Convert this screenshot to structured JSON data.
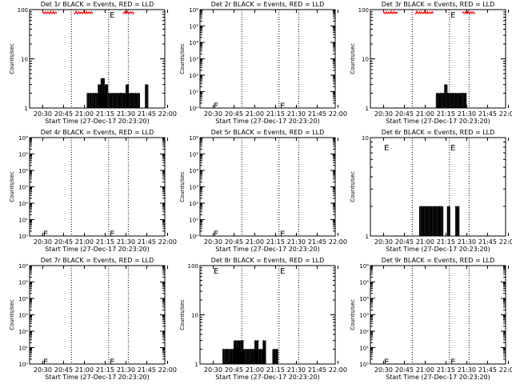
{
  "chart_data": [
    {
      "type": "line",
      "title": "Det 1r BLACK = Events, RED = LLD",
      "xlabel": "Start Time (27-Dec-17 20:23:20)",
      "ylabel": "Counts/sec",
      "xticks": [
        "20:30",
        "20:45",
        "21:00",
        "21:15",
        "21:30",
        "21:45",
        "22:00"
      ],
      "yscale": "log",
      "ylim": [
        1,
        100
      ],
      "yticks": [
        {
          "v": 1,
          "t": "1"
        },
        {
          "v": 10,
          "t": "10"
        },
        {
          "v": 100,
          "t": "100"
        }
      ],
      "dotted_lines_min": [
        20.67,
        47.5,
        61.67
      ],
      "markers": [
        {
          "x": 48.3,
          "y": 80,
          "t": "E"
        }
      ],
      "series": [
        {
          "color": "#000000",
          "bursts": [
            [
              32,
              46,
              1,
              2
            ],
            [
              40,
              42,
              1,
              3
            ],
            [
              42,
              45,
              1,
              4
            ],
            [
              45,
              47,
              1,
              3
            ],
            [
              47,
              70,
              1,
              2
            ],
            [
              60,
              62,
              1,
              3
            ],
            [
              74,
              76,
              1,
              3
            ]
          ]
        },
        {
          "color": "#ff0000",
          "lld": "top",
          "segments": [
            [
              0,
              10
            ],
            [
              23,
              36
            ],
            [
              58,
              66
            ]
          ]
        }
      ]
    },
    {
      "type": "line",
      "title": "Det 2r BLACK = Events, RED = LLD",
      "xlabel": "Start Time (27-Dec-17 20:23:20)",
      "ylabel": "Counts/sec",
      "xticks": [
        "20:30",
        "20:45",
        "21:00",
        "21:15",
        "21:30",
        "21:45",
        "22:00"
      ],
      "yscale": "log",
      "ylim": [
        1,
        1000000
      ],
      "yticks": [
        {
          "v": 1,
          "t": "10⁰"
        },
        {
          "v": 10,
          "t": "10¹"
        },
        {
          "v": 100,
          "t": "10²"
        },
        {
          "v": 1000,
          "t": "10³"
        },
        {
          "v": 10000,
          "t": "10⁴"
        },
        {
          "v": 100000,
          "t": "10⁵"
        },
        {
          "v": 1000000,
          "t": "10⁶"
        }
      ],
      "dotted_lines_min": [
        20.67,
        47.5,
        61.67
      ],
      "markers": [
        {
          "x": 0.3,
          "y": 1.5,
          "t": "E"
        },
        {
          "x": 48.3,
          "y": 1.5,
          "t": "E"
        }
      ],
      "series": []
    },
    {
      "type": "line",
      "title": "Det 3r BLACK = Events, RED = LLD",
      "xlabel": "Start Time (27-Dec-17 20:23:20)",
      "ylabel": "Counts/sec",
      "xticks": [
        "20:30",
        "20:45",
        "21:00",
        "21:15",
        "21:30",
        "21:45",
        "22:00"
      ],
      "yscale": "log",
      "ylim": [
        1,
        100
      ],
      "yticks": [
        {
          "v": 1,
          "t": "1"
        },
        {
          "v": 10,
          "t": "10"
        },
        {
          "v": 100,
          "t": "100"
        }
      ],
      "dotted_lines_min": [
        20.67,
        47.5,
        61.67
      ],
      "markers": [
        {
          "x": 48.3,
          "y": 80,
          "t": "E"
        }
      ],
      "series": [
        {
          "color": "#000000",
          "bursts": [
            [
              38,
              60,
              1,
              2
            ],
            [
              44,
              46,
              1,
              3
            ]
          ]
        },
        {
          "color": "#ff0000",
          "lld": "top",
          "segments": [
            [
              0,
              10
            ],
            [
              23,
              36
            ],
            [
              57,
              66
            ]
          ]
        }
      ]
    },
    {
      "type": "line",
      "title": "Det 4r BLACK = Events, RED = LLD",
      "xlabel": "Start Time (27-Dec-17 20:23:20)",
      "ylabel": "Counts/sec",
      "xticks": [
        "20:30",
        "20:45",
        "21:00",
        "21:15",
        "21:30",
        "21:45",
        "22:00"
      ],
      "yscale": "log",
      "ylim": [
        1,
        1000000
      ],
      "yticks": [
        {
          "v": 1,
          "t": "10⁰"
        },
        {
          "v": 10,
          "t": "10¹"
        },
        {
          "v": 100,
          "t": "10²"
        },
        {
          "v": 1000,
          "t": "10³"
        },
        {
          "v": 10000,
          "t": "10⁴"
        },
        {
          "v": 100000,
          "t": "10⁵"
        },
        {
          "v": 1000000,
          "t": "10⁶"
        }
      ],
      "dotted_lines_min": [
        20.67,
        47.5,
        61.67
      ],
      "markers": [
        {
          "x": 0.3,
          "y": 1.5,
          "t": "E"
        },
        {
          "x": 48.3,
          "y": 1.5,
          "t": "E"
        }
      ],
      "series": []
    },
    {
      "type": "line",
      "title": "Det 5r BLACK = Events, RED = LLD",
      "xlabel": "Start Time (27-Dec-17 20:23:20)",
      "ylabel": "Counts/sec",
      "xticks": [
        "20:30",
        "20:45",
        "21:00",
        "21:15",
        "21:30",
        "21:45",
        "22:00"
      ],
      "yscale": "log",
      "ylim": [
        1,
        1000000
      ],
      "yticks": [
        {
          "v": 1,
          "t": "10⁰"
        },
        {
          "v": 10,
          "t": "10¹"
        },
        {
          "v": 100,
          "t": "10²"
        },
        {
          "v": 1000,
          "t": "10³"
        },
        {
          "v": 10000,
          "t": "10⁴"
        },
        {
          "v": 100000,
          "t": "10⁵"
        },
        {
          "v": 1000000,
          "t": "10⁶"
        }
      ],
      "dotted_lines_min": [
        20.67,
        47.5,
        61.67
      ],
      "markers": [
        {
          "x": 0.3,
          "y": 1.5,
          "t": "E"
        },
        {
          "x": 48.3,
          "y": 1.5,
          "t": "E"
        }
      ],
      "series": []
    },
    {
      "type": "line",
      "title": "Det 6r BLACK = Events, RED = LLD",
      "xlabel": "Start Time (27-Dec-17 20:23:20)",
      "ylabel": "Counts/sec",
      "xticks": [
        "20:30",
        "20:45",
        "21:00",
        "21:15",
        "21:30",
        "21:45",
        "22:00"
      ],
      "yscale": "log",
      "ylim": [
        1,
        10
      ],
      "yticks": [
        {
          "v": 1,
          "t": "1"
        },
        {
          "v": 10,
          "t": "10"
        }
      ],
      "dotted_lines_min": [
        20.67,
        47.5,
        61.67
      ],
      "markers": [
        {
          "x": 0.3,
          "y": 8,
          "t": "E"
        },
        {
          "x": 48.3,
          "y": 8,
          "t": "E"
        }
      ],
      "series": [
        {
          "color": "#000000",
          "bursts": [
            [
              26,
              43,
              1,
              2
            ],
            [
              46,
              48,
              1,
              2
            ],
            [
              52,
              55,
              1,
              2
            ]
          ]
        }
      ]
    },
    {
      "type": "line",
      "title": "Det 7r BLACK = Events, RED = LLD",
      "xlabel": "Start Time (27-Dec-17 20:23:20)",
      "ylabel": "Counts/sec",
      "xticks": [
        "20:30",
        "20:45",
        "21:00",
        "21:15",
        "21:30",
        "21:45",
        "22:00"
      ],
      "yscale": "log",
      "ylim": [
        1,
        1000000
      ],
      "yticks": [
        {
          "v": 1,
          "t": "10⁰"
        },
        {
          "v": 10,
          "t": "10¹"
        },
        {
          "v": 100,
          "t": "10²"
        },
        {
          "v": 1000,
          "t": "10³"
        },
        {
          "v": 10000,
          "t": "10⁴"
        },
        {
          "v": 100000,
          "t": "10⁵"
        },
        {
          "v": 1000000,
          "t": "10⁶"
        }
      ],
      "dotted_lines_min": [
        20.67,
        47.5,
        61.67
      ],
      "markers": [
        {
          "x": 0.3,
          "y": 1.5,
          "t": "E"
        },
        {
          "x": 48.3,
          "y": 1.5,
          "t": "E"
        }
      ],
      "series": []
    },
    {
      "type": "line",
      "title": "Det 8r BLACK = Events, RED = LLD",
      "xlabel": "Start Time (27-Dec-17 20:23:20)",
      "ylabel": "Counts/sec",
      "xticks": [
        "20:30",
        "20:45",
        "21:00",
        "21:15",
        "21:30",
        "21:45",
        "22:00"
      ],
      "yscale": "log",
      "ylim": [
        1,
        100
      ],
      "yticks": [
        {
          "v": 1,
          "t": "1"
        },
        {
          "v": 10,
          "t": "10"
        },
        {
          "v": 100,
          "t": "100"
        }
      ],
      "dotted_lines_min": [
        20.67,
        47.5,
        61.67
      ],
      "markers": [
        {
          "x": 0.3,
          "y": 80,
          "t": "E"
        },
        {
          "x": 48.3,
          "y": 80,
          "t": "E"
        }
      ],
      "series": [
        {
          "color": "#000000",
          "bursts": [
            [
              7,
              38,
              1,
              2
            ],
            [
              15,
              22,
              1,
              3
            ],
            [
              30,
              33,
              1,
              3
            ],
            [
              36,
              38,
              1,
              3
            ],
            [
              43,
              47,
              1,
              2
            ]
          ]
        }
      ]
    },
    {
      "type": "line",
      "title": "Det 9r BLACK = Events, RED = LLD",
      "xlabel": "Start Time (27-Dec-17 20:23:20)",
      "ylabel": "Counts/sec",
      "xticks": [
        "20:30",
        "20:45",
        "21:00",
        "21:15",
        "21:30",
        "21:45",
        "22:00"
      ],
      "yscale": "log",
      "ylim": [
        1,
        1000000
      ],
      "yticks": [
        {
          "v": 1,
          "t": "10⁰"
        },
        {
          "v": 10,
          "t": "10¹"
        },
        {
          "v": 100,
          "t": "10²"
        },
        {
          "v": 1000,
          "t": "10³"
        },
        {
          "v": 10000,
          "t": "10⁴"
        },
        {
          "v": 100000,
          "t": "10⁵"
        },
        {
          "v": 1000000,
          "t": "10⁶"
        }
      ],
      "dotted_lines_min": [
        20.67,
        47.5,
        61.67
      ],
      "markers": [
        {
          "x": 0.3,
          "y": 1.5,
          "t": "E"
        },
        {
          "x": 48.3,
          "y": 1.5,
          "t": "E"
        }
      ],
      "series": []
    }
  ]
}
